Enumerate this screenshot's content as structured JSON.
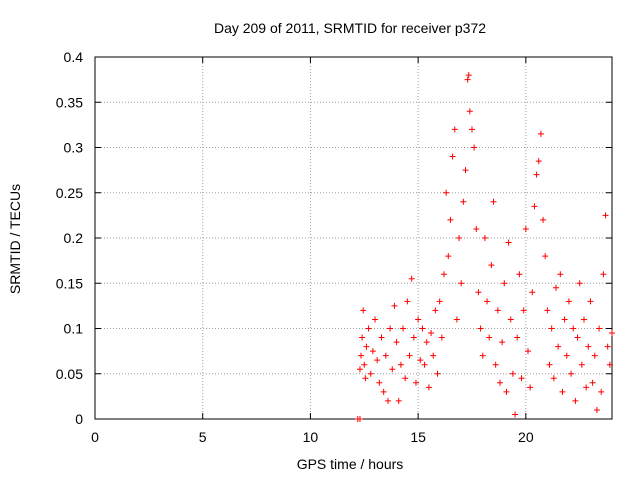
{
  "chart_data": {
    "type": "scatter",
    "title": "Day 209 of 2011, SRMTID for receiver p372",
    "xlabel": "GPS time / hours",
    "ylabel": "SRMTID / TECUs",
    "xlim": [
      0,
      24
    ],
    "ylim": [
      0,
      0.4
    ],
    "xticks": [
      0,
      5,
      10,
      15,
      20
    ],
    "yticks": [
      0,
      0.05,
      0.1,
      0.15,
      0.2,
      0.25,
      0.3,
      0.35,
      0.4
    ],
    "grid": true,
    "marker": "+",
    "color": "#ff0000",
    "series": [
      {
        "points": [
          [
            12.2,
            0.0
          ],
          [
            12.3,
            0.0
          ],
          [
            12.3,
            0.055
          ],
          [
            12.35,
            0.07
          ],
          [
            12.4,
            0.09
          ],
          [
            12.45,
            0.12
          ],
          [
            12.5,
            0.06
          ],
          [
            12.55,
            0.045
          ],
          [
            12.6,
            0.08
          ],
          [
            12.7,
            0.1
          ],
          [
            12.8,
            0.05
          ],
          [
            12.9,
            0.075
          ],
          [
            13.0,
            0.11
          ],
          [
            13.1,
            0.065
          ],
          [
            13.2,
            0.04
          ],
          [
            13.3,
            0.09
          ],
          [
            13.4,
            0.03
          ],
          [
            13.5,
            0.07
          ],
          [
            13.6,
            0.02
          ],
          [
            13.7,
            0.1
          ],
          [
            13.8,
            0.055
          ],
          [
            13.9,
            0.125
          ],
          [
            14.0,
            0.085
          ],
          [
            14.1,
            0.02
          ],
          [
            14.2,
            0.06
          ],
          [
            14.3,
            0.1
          ],
          [
            14.4,
            0.045
          ],
          [
            14.5,
            0.13
          ],
          [
            14.6,
            0.07
          ],
          [
            14.7,
            0.155
          ],
          [
            14.8,
            0.09
          ],
          [
            14.9,
            0.04
          ],
          [
            15.0,
            0.11
          ],
          [
            15.1,
            0.065
          ],
          [
            15.2,
            0.1
          ],
          [
            15.3,
            0.06
          ],
          [
            15.4,
            0.085
          ],
          [
            15.5,
            0.035
          ],
          [
            15.6,
            0.095
          ],
          [
            15.7,
            0.07
          ],
          [
            15.8,
            0.12
          ],
          [
            15.9,
            0.05
          ],
          [
            16.0,
            0.13
          ],
          [
            16.1,
            0.09
          ],
          [
            16.2,
            0.16
          ],
          [
            16.3,
            0.25
          ],
          [
            16.4,
            0.18
          ],
          [
            16.5,
            0.22
          ],
          [
            16.6,
            0.29
          ],
          [
            16.7,
            0.32
          ],
          [
            16.8,
            0.11
          ],
          [
            16.9,
            0.2
          ],
          [
            17.0,
            0.15
          ],
          [
            17.1,
            0.24
          ],
          [
            17.2,
            0.275
          ],
          [
            17.3,
            0.375
          ],
          [
            17.35,
            0.38
          ],
          [
            17.4,
            0.34
          ],
          [
            17.5,
            0.32
          ],
          [
            17.6,
            0.3
          ],
          [
            17.7,
            0.21
          ],
          [
            17.8,
            0.14
          ],
          [
            17.9,
            0.1
          ],
          [
            18.0,
            0.07
          ],
          [
            18.1,
            0.2
          ],
          [
            18.2,
            0.13
          ],
          [
            18.3,
            0.09
          ],
          [
            18.4,
            0.17
          ],
          [
            18.5,
            0.24
          ],
          [
            18.6,
            0.06
          ],
          [
            18.7,
            0.12
          ],
          [
            18.8,
            0.04
          ],
          [
            18.9,
            0.085
          ],
          [
            19.0,
            0.15
          ],
          [
            19.1,
            0.03
          ],
          [
            19.2,
            0.195
          ],
          [
            19.3,
            0.11
          ],
          [
            19.4,
            0.05
          ],
          [
            19.5,
            0.005
          ],
          [
            19.6,
            0.09
          ],
          [
            19.7,
            0.16
          ],
          [
            19.8,
            0.045
          ],
          [
            19.9,
            0.12
          ],
          [
            20.0,
            0.21
          ],
          [
            20.1,
            0.075
          ],
          [
            20.2,
            0.035
          ],
          [
            20.3,
            0.14
          ],
          [
            20.4,
            0.235
          ],
          [
            20.5,
            0.27
          ],
          [
            20.6,
            0.285
          ],
          [
            20.7,
            0.315
          ],
          [
            20.8,
            0.22
          ],
          [
            20.9,
            0.18
          ],
          [
            21.0,
            0.12
          ],
          [
            21.1,
            0.06
          ],
          [
            21.2,
            0.1
          ],
          [
            21.3,
            0.045
          ],
          [
            21.4,
            0.145
          ],
          [
            21.5,
            0.08
          ],
          [
            21.6,
            0.16
          ],
          [
            21.7,
            0.03
          ],
          [
            21.8,
            0.11
          ],
          [
            21.9,
            0.07
          ],
          [
            22.0,
            0.13
          ],
          [
            22.1,
            0.05
          ],
          [
            22.2,
            0.1
          ],
          [
            22.3,
            0.02
          ],
          [
            22.4,
            0.09
          ],
          [
            22.5,
            0.15
          ],
          [
            22.6,
            0.06
          ],
          [
            22.7,
            0.11
          ],
          [
            22.8,
            0.035
          ],
          [
            22.9,
            0.08
          ],
          [
            23.0,
            0.13
          ],
          [
            23.1,
            0.04
          ],
          [
            23.2,
            0.07
          ],
          [
            23.3,
            0.01
          ],
          [
            23.4,
            0.1
          ],
          [
            23.5,
            0.03
          ],
          [
            23.6,
            0.16
          ],
          [
            23.7,
            0.225
          ],
          [
            23.8,
            0.08
          ],
          [
            23.9,
            0.06
          ],
          [
            24.0,
            0.095
          ]
        ]
      }
    ]
  }
}
